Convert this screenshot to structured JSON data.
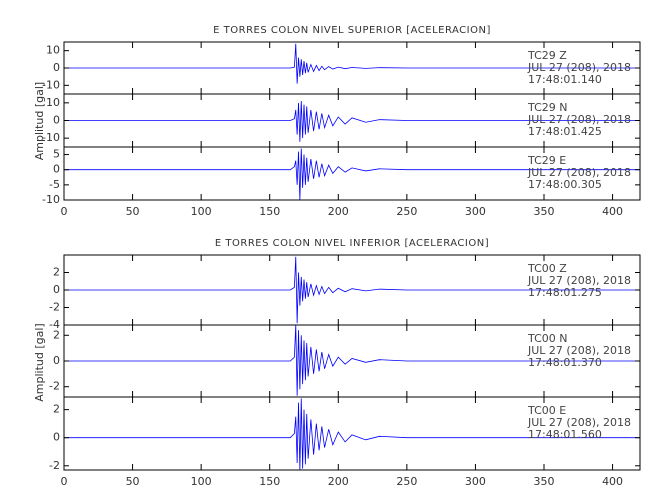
{
  "chart_data": [
    {
      "type": "line",
      "title": "E TORRES COLON NIVEL SUPERIOR [ACELERACION]",
      "ylabel": "Amplitud [gal]",
      "annotations": [
        "TC29   Z",
        "JUL 27 (208), 2018",
        "17:48:01.140"
      ],
      "x": [
        0,
        100,
        165,
        168,
        169,
        170,
        171,
        172,
        173,
        174,
        175,
        176,
        177,
        178,
        180,
        182,
        184,
        186,
        188,
        190,
        193,
        196,
        200,
        205,
        210,
        220,
        230,
        250,
        300,
        420
      ],
      "values": [
        0,
        0,
        0,
        0.5,
        14,
        -9,
        6,
        -5,
        5,
        -4,
        4,
        -3,
        3,
        -2.5,
        2,
        -2,
        1.5,
        -1.5,
        1,
        -1,
        0.8,
        -0.6,
        0.5,
        -0.4,
        0.3,
        -0.2,
        0.2,
        0,
        0,
        0
      ],
      "color": "#0000ff",
      "xlim": [
        0,
        420
      ],
      "xticks": [
        0,
        50,
        100,
        150,
        200,
        250,
        300,
        350,
        400
      ],
      "ylim": [
        -15,
        15
      ],
      "yticks": [
        -10,
        0,
        10
      ]
    },
    {
      "type": "line",
      "annotations": [
        "TC29   N",
        "JUL 27 (208), 2018",
        "17:48:01.425"
      ],
      "x": [
        0,
        100,
        165,
        168,
        169,
        170,
        171,
        172,
        173,
        174,
        175,
        176,
        177,
        178,
        180,
        182,
        184,
        186,
        188,
        190,
        193,
        196,
        200,
        205,
        210,
        220,
        230,
        250,
        300,
        420
      ],
      "values": [
        0,
        0,
        0,
        1,
        6,
        -8,
        10,
        -12,
        11,
        -10,
        9,
        -8,
        8,
        -7,
        6,
        -6,
        5,
        -5,
        4,
        -4,
        3,
        -3,
        2,
        -2,
        1.5,
        -1,
        0.5,
        0,
        0,
        0
      ],
      "color": "#0000ff",
      "xlim": [
        0,
        420
      ],
      "xticks": [
        0,
        50,
        100,
        150,
        200,
        250,
        300,
        350,
        400
      ],
      "ylim": [
        -15,
        15
      ],
      "yticks": [
        -10,
        0,
        10
      ]
    },
    {
      "type": "line",
      "annotations": [
        "TC29   E",
        "JUL 27 (208), 2018",
        "17:48:00.305"
      ],
      "x": [
        0,
        100,
        165,
        168,
        169,
        170,
        171,
        172,
        173,
        174,
        175,
        176,
        177,
        178,
        180,
        182,
        184,
        186,
        188,
        190,
        193,
        196,
        200,
        205,
        210,
        220,
        230,
        250,
        300,
        420
      ],
      "values": [
        0,
        0,
        0,
        1,
        3,
        -5,
        6,
        -10,
        7,
        -6,
        5,
        -5,
        4,
        -4,
        3.5,
        -3,
        3,
        -2.5,
        2,
        -2,
        1.5,
        -1.2,
        1,
        -0.8,
        0.6,
        -0.4,
        0.3,
        0,
        0,
        0
      ],
      "color": "#0000ff",
      "xlim": [
        0,
        420
      ],
      "xticks": [
        0,
        50,
        100,
        150,
        200,
        250,
        300,
        350,
        400
      ],
      "ylim": [
        -10,
        7.5
      ],
      "yticks": [
        -10,
        -5,
        0,
        5
      ]
    },
    {
      "type": "line",
      "title": "E TORRES COLON NIVEL INFERIOR [ACELERACION]",
      "ylabel": "Amplitud [gal]",
      "annotations": [
        "TC00   Z",
        "JUL 27 (208), 2018",
        "17:48:01.275"
      ],
      "x": [
        0,
        100,
        165,
        168,
        169,
        170,
        171,
        172,
        173,
        174,
        175,
        176,
        177,
        178,
        180,
        182,
        184,
        186,
        188,
        190,
        193,
        196,
        200,
        205,
        210,
        220,
        230,
        250,
        300,
        420
      ],
      "values": [
        0,
        0,
        0,
        0.3,
        3.8,
        -3.8,
        2,
        -1.8,
        1.5,
        -1.3,
        1.2,
        -1,
        0.9,
        -0.8,
        0.7,
        -0.6,
        0.5,
        -0.5,
        0.4,
        -0.4,
        0.3,
        -0.3,
        0.2,
        -0.2,
        0.15,
        -0.1,
        0.1,
        0,
        0,
        0
      ],
      "color": "#0000ff",
      "xlim": [
        0,
        420
      ],
      "xticks": [
        0,
        50,
        100,
        150,
        200,
        250,
        300,
        350,
        400
      ],
      "ylim": [
        -4,
        4
      ],
      "yticks": [
        -4,
        -2,
        0,
        2
      ]
    },
    {
      "type": "line",
      "annotations": [
        "TC00   N",
        "JUL 27 (208), 2018",
        "17:48:01.370"
      ],
      "x": [
        0,
        100,
        165,
        168,
        169,
        170,
        171,
        172,
        173,
        174,
        175,
        176,
        177,
        178,
        180,
        182,
        184,
        186,
        188,
        190,
        193,
        196,
        200,
        205,
        210,
        220,
        230,
        250,
        300,
        420
      ],
      "values": [
        0,
        0,
        0,
        0.3,
        2.8,
        -2.7,
        2.4,
        -2.2,
        2,
        -1.8,
        1.6,
        -1.5,
        1.4,
        -1.2,
        1.1,
        -1,
        0.9,
        -0.8,
        0.7,
        -0.6,
        0.5,
        -0.4,
        0.3,
        -0.25,
        0.2,
        -0.1,
        0.1,
        0,
        0,
        0
      ],
      "color": "#0000ff",
      "xlim": [
        0,
        420
      ],
      "xticks": [
        0,
        50,
        100,
        150,
        200,
        250,
        300,
        350,
        400
      ],
      "ylim": [
        -2.8,
        2.8
      ],
      "yticks": [
        -2,
        0,
        2
      ]
    },
    {
      "type": "line",
      "annotations": [
        "TC00   E",
        "JUL 27 (208), 2018",
        "17:48:01.560"
      ],
      "x": [
        0,
        100,
        165,
        168,
        169,
        170,
        171,
        172,
        173,
        174,
        175,
        176,
        177,
        178,
        180,
        182,
        184,
        186,
        188,
        190,
        193,
        196,
        200,
        205,
        210,
        220,
        230,
        250,
        300,
        420
      ],
      "values": [
        0,
        0,
        0,
        0.3,
        1.5,
        -1.8,
        2.5,
        -2.3,
        2.8,
        -2.2,
        2,
        -1.9,
        1.7,
        -1.5,
        1.3,
        -1.2,
        1,
        -0.9,
        0.8,
        -0.7,
        0.6,
        -0.5,
        0.4,
        -0.3,
        0.2,
        -0.15,
        0.1,
        0,
        0,
        0
      ],
      "color": "#0000ff",
      "xlim": [
        0,
        420
      ],
      "xticks": [
        0,
        50,
        100,
        150,
        200,
        250,
        300,
        350,
        400
      ],
      "ylim": [
        -2.3,
        2.9
      ],
      "yticks": [
        -2,
        0,
        2
      ]
    }
  ]
}
